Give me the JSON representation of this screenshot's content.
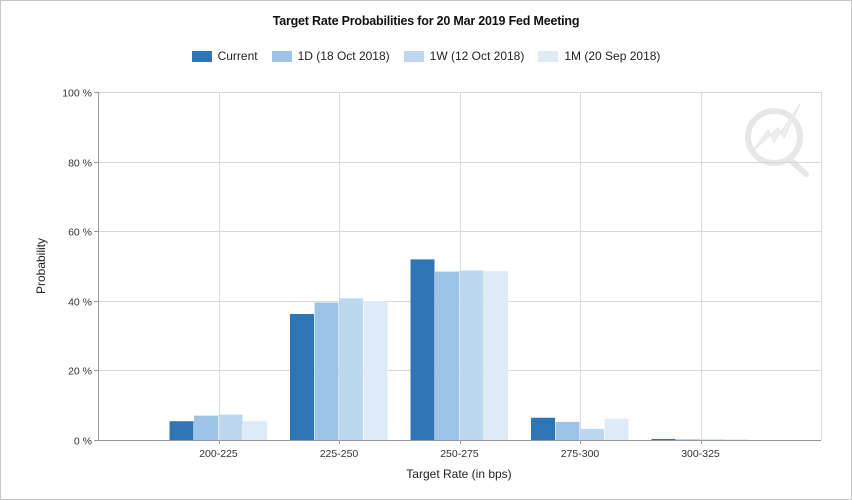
{
  "chart_data": {
    "type": "bar",
    "title": "Target Rate Probabilities for 20 Mar 2019 Fed Meeting",
    "xlabel": "Target Rate (in bps)",
    "ylabel": "Probability",
    "ylim": [
      0,
      100
    ],
    "yticks": [
      "0 %",
      "20 %",
      "40 %",
      "60 %",
      "80 %",
      "100 %"
    ],
    "ytick_values": [
      0,
      20,
      40,
      60,
      80,
      100
    ],
    "grid": true,
    "legend_position": "top-center",
    "categories": [
      "200-225",
      "225-250",
      "250-275",
      "275-300",
      "300-325"
    ],
    "series": [
      {
        "name": "Current",
        "color": "#2e75b6",
        "values": [
          5.4,
          36.2,
          51.9,
          6.4,
          0.3
        ]
      },
      {
        "name": "1D (18 Oct 2018)",
        "color": "#9dc3e6",
        "values": [
          7.0,
          39.5,
          48.4,
          5.2,
          0.2
        ]
      },
      {
        "name": "1W (12 Oct 2018)",
        "color": "#bdd7ee",
        "values": [
          7.3,
          40.7,
          48.7,
          3.2,
          0.2
        ]
      },
      {
        "name": "1M (20 Sep 2018)",
        "color": "#deebf7",
        "values": [
          5.4,
          39.9,
          48.5,
          6.1,
          0.2
        ]
      }
    ]
  }
}
